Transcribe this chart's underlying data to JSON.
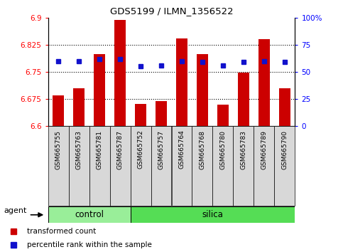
{
  "title": "GDS5199 / ILMN_1356522",
  "samples": [
    "GSM665755",
    "GSM665763",
    "GSM665781",
    "GSM665787",
    "GSM665752",
    "GSM665757",
    "GSM665764",
    "GSM665768",
    "GSM665780",
    "GSM665783",
    "GSM665789",
    "GSM665790"
  ],
  "bar_values": [
    6.685,
    6.705,
    6.8,
    6.893,
    6.662,
    6.668,
    6.843,
    6.8,
    6.66,
    6.748,
    6.84,
    6.705
  ],
  "percentile_values": [
    60,
    60,
    62,
    62,
    55,
    56,
    60,
    59,
    56,
    59,
    60,
    59
  ],
  "ylim_left": [
    6.6,
    6.9
  ],
  "ylim_right": [
    0,
    100
  ],
  "yticks_left": [
    6.6,
    6.675,
    6.75,
    6.825,
    6.9
  ],
  "yticks_right": [
    0,
    25,
    50,
    75,
    100
  ],
  "ytick_labels_left": [
    "6.6",
    "6.675",
    "6.75",
    "6.825",
    "6.9"
  ],
  "ytick_labels_right": [
    "0",
    "25",
    "50",
    "75",
    "100%"
  ],
  "bar_color": "#cc0000",
  "blue_color": "#1111cc",
  "control_color": "#99ee99",
  "silica_color": "#55dd55",
  "grid_lines": [
    6.675,
    6.75,
    6.825
  ],
  "bar_bottom": 6.6,
  "control_samples": 4,
  "silica_samples": 8,
  "legend_bar": "transformed count",
  "legend_blue": "percentile rank within the sample",
  "agent_label": "agent"
}
